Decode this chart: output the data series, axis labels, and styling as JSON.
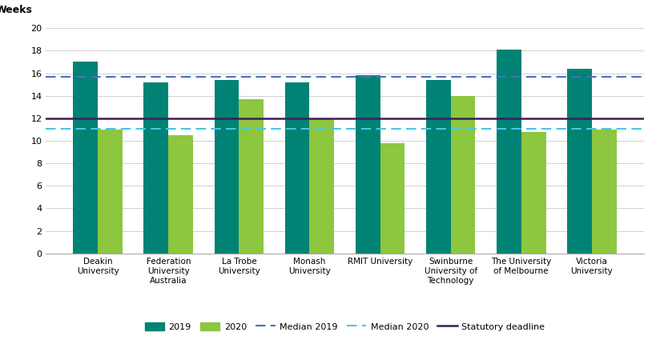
{
  "categories": [
    "Deakin\nUniversity",
    "Federation\nUniversity\nAustralia",
    "La Trobe\nUniversity",
    "Monash\nUniversity",
    "RMIT University",
    "Swinburne\nUniversity of\nTechnology",
    "The University\nof Melbourne",
    "Victoria\nUniversity"
  ],
  "values_2019": [
    17,
    15.2,
    15.4,
    15.2,
    15.8,
    15.4,
    18.1,
    16.4
  ],
  "values_2020": [
    11,
    10.5,
    13.7,
    12,
    9.8,
    14,
    10.8,
    11
  ],
  "median_2019": 15.7,
  "median_2020": 11.1,
  "statutory_deadline": 12,
  "color_2019": "#008374",
  "color_2020": "#8DC63F",
  "color_median_2019": "#4472C4",
  "color_median_2020": "#49C5E5",
  "color_statutory": "#3E1D5C",
  "weeks_label": "Weeks",
  "ylim": [
    0,
    20
  ],
  "yticks": [
    0,
    2,
    4,
    6,
    8,
    10,
    12,
    14,
    16,
    18,
    20
  ],
  "bar_width": 0.35,
  "legend_labels": [
    "2019",
    "2020",
    "Median 2019",
    "Median 2020",
    "Statutory deadline"
  ]
}
